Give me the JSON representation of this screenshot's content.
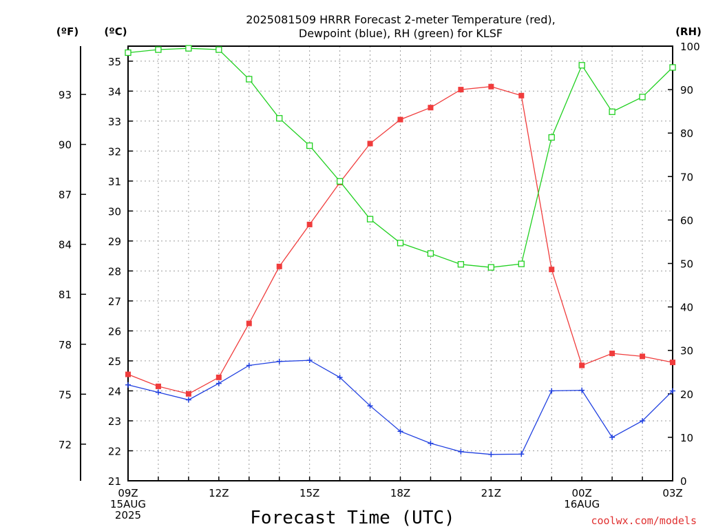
{
  "header": {
    "title_line1": "2025081509 HRRR Forecast 2-meter Temperature (red),",
    "title_line2": "Dewpoint (blue), RH (green) for KLSF"
  },
  "units": {
    "fahrenheit": "(ºF)",
    "celsius": "(ºC)",
    "rh": "(RH)"
  },
  "x_axis": {
    "title": "Forecast Time (UTC)",
    "ticks": [
      {
        "hour": 0,
        "label": "09Z",
        "sub1": "15AUG",
        "sub2": "2025"
      },
      {
        "hour": 3,
        "label": "12Z"
      },
      {
        "hour": 6,
        "label": "15Z"
      },
      {
        "hour": 9,
        "label": "18Z"
      },
      {
        "hour": 12,
        "label": "21Z"
      },
      {
        "hour": 15,
        "label": "00Z",
        "sub1": "16AUG"
      },
      {
        "hour": 18,
        "label": "03Z"
      }
    ]
  },
  "credit": "coolwx.com/models",
  "colors": {
    "temperature": "#f03c3c",
    "dewpoint": "#2040e0",
    "rh": "#20d020",
    "grid": "#9a9a9a",
    "credit": "#e03030"
  },
  "chart_data": {
    "type": "line",
    "x_unit": "hours since 09Z 15AUG 2025",
    "x": [
      0,
      1,
      2,
      3,
      4,
      5,
      6,
      7,
      8,
      9,
      10,
      11,
      12,
      13,
      14,
      15,
      16,
      17,
      18
    ],
    "celsius_axis": {
      "range": [
        21,
        35.5
      ],
      "ticks": [
        21,
        22,
        23,
        24,
        25,
        26,
        27,
        28,
        29,
        30,
        31,
        32,
        33,
        34,
        35
      ]
    },
    "fahrenheit_axis": {
      "ticks": [
        72,
        75,
        78,
        81,
        84,
        87,
        90,
        93
      ]
    },
    "rh_axis": {
      "range": [
        0,
        100
      ],
      "ticks": [
        0,
        10,
        20,
        30,
        40,
        50,
        60,
        70,
        80,
        90,
        100
      ]
    },
    "grid": true,
    "series": [
      {
        "name": "Temperature",
        "axis": "celsius",
        "marker": "square-filled",
        "values": [
          24.55,
          24.15,
          23.9,
          24.45,
          26.25,
          28.15,
          29.55,
          30.95,
          32.25,
          33.05,
          33.45,
          34.05,
          34.15,
          33.85,
          28.05,
          24.85,
          25.25,
          25.15,
          24.95
        ]
      },
      {
        "name": "Dewpoint",
        "axis": "celsius",
        "marker": "plus",
        "values": [
          24.2,
          23.95,
          23.7,
          24.25,
          24.85,
          24.98,
          25.02,
          24.45,
          23.5,
          22.65,
          22.25,
          21.97,
          21.88,
          21.89,
          24.0,
          24.02,
          22.45,
          23.0,
          24.0
        ]
      },
      {
        "name": "RH",
        "axis": "rh",
        "marker": "square-open",
        "values": [
          98.5,
          99.2,
          99.5,
          99.2,
          92.4,
          83.4,
          77.1,
          68.9,
          60.2,
          54.7,
          52.3,
          49.8,
          49.1,
          49.9,
          79.0,
          95.6,
          84.9,
          88.3,
          95.1
        ]
      }
    ]
  }
}
